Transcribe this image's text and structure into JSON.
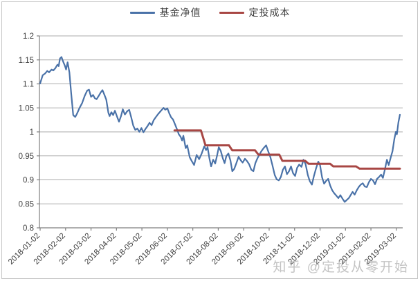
{
  "watermark": {
    "text": "知乎 @定投从零开始"
  },
  "colors": {
    "grid": "#a9a9a9",
    "axis": "#7f7f7f",
    "tick_text": "#3f3f3f",
    "frame_border": "#c6c6c6"
  },
  "chart_data": {
    "type": "line",
    "title": "",
    "xlabel": "",
    "ylabel": "",
    "grid": true,
    "legend_position": "top-center",
    "ylim": [
      0.8,
      1.2
    ],
    "y_tick_labels": [
      "0.8",
      "0.85",
      "0.9",
      "0.95",
      "1",
      "1.05",
      "1.1",
      "1.15",
      "1.2"
    ],
    "y_tick_values": [
      0.8,
      0.85,
      0.9,
      0.95,
      1.0,
      1.05,
      1.1,
      1.15,
      1.2
    ],
    "x_unit": "months since first label",
    "xlim_months": [
      0,
      14.14
    ],
    "x_tick_months": [
      0,
      1,
      2,
      3,
      4,
      5,
      6,
      7,
      8,
      9,
      10,
      11,
      12,
      13,
      14
    ],
    "x_tick_labels": [
      "2018-01-02",
      "2018-02-02",
      "2018-03-02",
      "2018-04-02",
      "2018-05-02",
      "2018-06-02",
      "2018-07-02",
      "2018-08-02",
      "2018-09-02",
      "2018-10-02",
      "2018-11-02",
      "2018-12-02",
      "2019-01-02",
      "2019-02-02",
      "2019-03-02"
    ],
    "series": [
      {
        "name": "基金净值",
        "color": "#4a72a8",
        "width": 2.2,
        "points": [
          [
            0,
            1.101
          ],
          [
            0.1,
            1.118
          ],
          [
            0.2,
            1.122
          ],
          [
            0.28,
            1.127
          ],
          [
            0.35,
            1.124
          ],
          [
            0.45,
            1.13
          ],
          [
            0.52,
            1.128
          ],
          [
            0.6,
            1.133
          ],
          [
            0.68,
            1.14
          ],
          [
            0.73,
            1.137
          ],
          [
            0.78,
            1.153
          ],
          [
            0.84,
            1.156
          ],
          [
            0.9,
            1.147
          ],
          [
            0.97,
            1.138
          ],
          [
            1.02,
            1.13
          ],
          [
            1.08,
            1.145
          ],
          [
            1.15,
            1.124
          ],
          [
            1.22,
            1.08
          ],
          [
            1.3,
            1.035
          ],
          [
            1.38,
            1.031
          ],
          [
            1.45,
            1.038
          ],
          [
            1.55,
            1.05
          ],
          [
            1.65,
            1.06
          ],
          [
            1.75,
            1.075
          ],
          [
            1.85,
            1.086
          ],
          [
            1.92,
            1.088
          ],
          [
            2.0,
            1.073
          ],
          [
            2.08,
            1.077
          ],
          [
            2.15,
            1.07
          ],
          [
            2.22,
            1.068
          ],
          [
            2.3,
            1.075
          ],
          [
            2.38,
            1.082
          ],
          [
            2.45,
            1.087
          ],
          [
            2.52,
            1.078
          ],
          [
            2.6,
            1.067
          ],
          [
            2.68,
            1.04
          ],
          [
            2.73,
            1.033
          ],
          [
            2.8,
            1.041
          ],
          [
            2.87,
            1.035
          ],
          [
            2.94,
            1.044
          ],
          [
            3.02,
            1.032
          ],
          [
            3.1,
            1.021
          ],
          [
            3.18,
            1.033
          ],
          [
            3.25,
            1.047
          ],
          [
            3.33,
            1.036
          ],
          [
            3.42,
            1.043
          ],
          [
            3.5,
            1.046
          ],
          [
            3.58,
            1.03
          ],
          [
            3.66,
            1.013
          ],
          [
            3.74,
            1.004
          ],
          [
            3.82,
            1.007
          ],
          [
            3.9,
            1.0
          ],
          [
            3.98,
            1.008
          ],
          [
            4.06,
            0.999
          ],
          [
            4.14,
            1.006
          ],
          [
            4.22,
            1.012
          ],
          [
            4.3,
            1.019
          ],
          [
            4.38,
            1.014
          ],
          [
            4.46,
            1.024
          ],
          [
            4.55,
            1.031
          ],
          [
            4.65,
            1.038
          ],
          [
            4.75,
            1.044
          ],
          [
            4.85,
            1.05
          ],
          [
            4.92,
            1.046
          ],
          [
            5.0,
            1.049
          ],
          [
            5.08,
            1.038
          ],
          [
            5.15,
            1.03
          ],
          [
            5.22,
            1.026
          ],
          [
            5.3,
            1.016
          ],
          [
            5.38,
            1.005
          ],
          [
            5.45,
            0.995
          ],
          [
            5.52,
            0.99
          ],
          [
            5.58,
            0.982
          ],
          [
            5.63,
            0.992
          ],
          [
            5.72,
            0.966
          ],
          [
            5.78,
            0.972
          ],
          [
            5.88,
            0.947
          ],
          [
            5.95,
            0.94
          ],
          [
            6.05,
            0.931
          ],
          [
            6.15,
            0.952
          ],
          [
            6.25,
            0.943
          ],
          [
            6.35,
            0.955
          ],
          [
            6.45,
            0.97
          ],
          [
            6.52,
            0.962
          ],
          [
            6.58,
            0.968
          ],
          [
            6.65,
            0.945
          ],
          [
            6.72,
            0.928
          ],
          [
            6.8,
            0.942
          ],
          [
            6.88,
            0.934
          ],
          [
            6.95,
            0.95
          ],
          [
            7.02,
            0.968
          ],
          [
            7.1,
            0.96
          ],
          [
            7.18,
            0.945
          ],
          [
            7.25,
            0.935
          ],
          [
            7.32,
            0.95
          ],
          [
            7.4,
            0.955
          ],
          [
            7.48,
            0.94
          ],
          [
            7.55,
            0.918
          ],
          [
            7.63,
            0.923
          ],
          [
            7.72,
            0.936
          ],
          [
            7.8,
            0.948
          ],
          [
            7.88,
            0.941
          ],
          [
            7.96,
            0.936
          ],
          [
            8.05,
            0.944
          ],
          [
            8.13,
            0.939
          ],
          [
            8.21,
            0.933
          ],
          [
            8.3,
            0.921
          ],
          [
            8.38,
            0.918
          ],
          [
            8.46,
            0.935
          ],
          [
            8.54,
            0.945
          ],
          [
            8.62,
            0.953
          ],
          [
            8.7,
            0.96
          ],
          [
            8.78,
            0.966
          ],
          [
            8.88,
            0.972
          ],
          [
            8.96,
            0.96
          ],
          [
            9.05,
            0.947
          ],
          [
            9.13,
            0.93
          ],
          [
            9.22,
            0.91
          ],
          [
            9.3,
            0.901
          ],
          [
            9.38,
            0.899
          ],
          [
            9.46,
            0.906
          ],
          [
            9.54,
            0.921
          ],
          [
            9.62,
            0.928
          ],
          [
            9.7,
            0.912
          ],
          [
            9.78,
            0.918
          ],
          [
            9.86,
            0.928
          ],
          [
            9.94,
            0.914
          ],
          [
            10.02,
            0.908
          ],
          [
            10.1,
            0.925
          ],
          [
            10.18,
            0.932
          ],
          [
            10.27,
            0.927
          ],
          [
            10.35,
            0.942
          ],
          [
            10.43,
            0.933
          ],
          [
            10.52,
            0.91
          ],
          [
            10.6,
            0.897
          ],
          [
            10.68,
            0.89
          ],
          [
            10.76,
            0.908
          ],
          [
            10.85,
            0.925
          ],
          [
            10.93,
            0.938
          ],
          [
            11.0,
            0.931
          ],
          [
            11.08,
            0.905
          ],
          [
            11.16,
            0.892
          ],
          [
            11.24,
            0.898
          ],
          [
            11.32,
            0.902
          ],
          [
            11.4,
            0.888
          ],
          [
            11.48,
            0.878
          ],
          [
            11.56,
            0.872
          ],
          [
            11.64,
            0.867
          ],
          [
            11.72,
            0.862
          ],
          [
            11.8,
            0.868
          ],
          [
            11.88,
            0.861
          ],
          [
            11.97,
            0.854
          ],
          [
            12.05,
            0.858
          ],
          [
            12.13,
            0.862
          ],
          [
            12.2,
            0.868
          ],
          [
            12.28,
            0.875
          ],
          [
            12.36,
            0.869
          ],
          [
            12.44,
            0.878
          ],
          [
            12.52,
            0.885
          ],
          [
            12.6,
            0.89
          ],
          [
            12.68,
            0.893
          ],
          [
            12.76,
            0.886
          ],
          [
            12.84,
            0.885
          ],
          [
            12.92,
            0.895
          ],
          [
            13.0,
            0.902
          ],
          [
            13.08,
            0.899
          ],
          [
            13.16,
            0.891
          ],
          [
            13.24,
            0.902
          ],
          [
            13.32,
            0.906
          ],
          [
            13.4,
            0.911
          ],
          [
            13.47,
            0.904
          ],
          [
            13.55,
            0.922
          ],
          [
            13.63,
            0.942
          ],
          [
            13.7,
            0.931
          ],
          [
            13.77,
            0.945
          ],
          [
            13.85,
            0.96
          ],
          [
            13.92,
            0.985
          ],
          [
            13.98,
            1.0
          ],
          [
            14.02,
            0.995
          ],
          [
            14.08,
            1.02
          ],
          [
            14.14,
            1.036
          ]
        ]
      },
      {
        "name": "定投成本",
        "color": "#a84744",
        "width": 3,
        "points": [
          [
            5.28,
            1.003
          ],
          [
            6.32,
            1.003
          ],
          [
            6.5,
            0.972
          ],
          [
            7.42,
            0.972
          ],
          [
            7.55,
            0.9615
          ],
          [
            8.45,
            0.9615
          ],
          [
            8.58,
            0.9525
          ],
          [
            9.4,
            0.9525
          ],
          [
            9.52,
            0.9395
          ],
          [
            10.42,
            0.9395
          ],
          [
            10.55,
            0.9335
          ],
          [
            11.4,
            0.9335
          ],
          [
            11.52,
            0.928
          ],
          [
            12.42,
            0.928
          ],
          [
            12.55,
            0.9235
          ],
          [
            14.14,
            0.9235
          ]
        ]
      }
    ]
  }
}
